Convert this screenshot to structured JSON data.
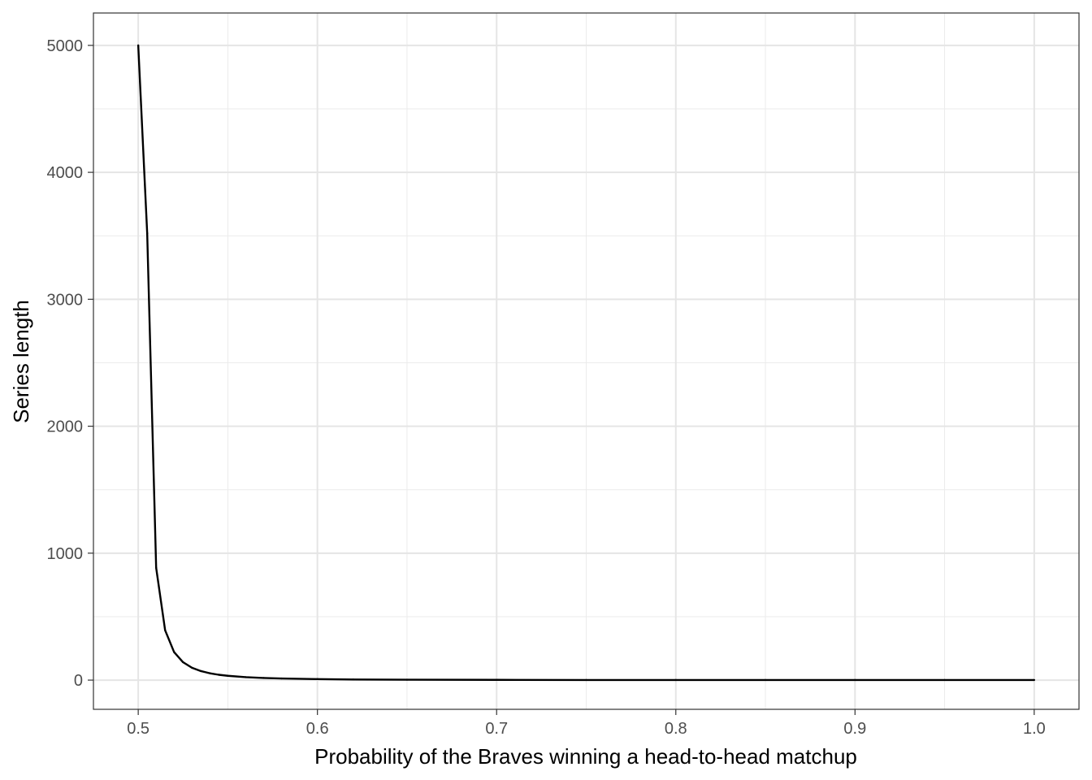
{
  "chart_data": {
    "type": "line",
    "title": "",
    "xlabel": "Probability of the Braves winning a head-to-head matchup",
    "ylabel": "Series length",
    "xlim": [
      0.475,
      1.025
    ],
    "ylim": [
      -230,
      5255
    ],
    "x_ticks": [
      0.5,
      0.6,
      0.7,
      0.8,
      0.9,
      1.0
    ],
    "x_tick_labels": [
      "0.5",
      "0.6",
      "0.7",
      "0.8",
      "0.9",
      "1.0"
    ],
    "y_ticks": [
      0,
      1000,
      2000,
      3000,
      4000,
      5000
    ],
    "y_tick_labels": [
      "0",
      "1000",
      "2000",
      "3000",
      "4000",
      "5000"
    ],
    "grid": true,
    "theme": "bw",
    "series": [
      {
        "color": "#000000",
        "x": [
          0.5,
          0.505,
          0.51,
          0.515,
          0.52,
          0.525,
          0.53,
          0.535,
          0.54,
          0.545,
          0.55,
          0.56,
          0.57,
          0.58,
          0.6,
          0.62,
          0.65,
          0.7,
          0.75,
          0.8,
          0.85,
          0.9,
          0.95,
          1.0
        ],
        "y": [
          5000,
          3520,
          885,
          393,
          221,
          141,
          97,
          71,
          54,
          42,
          34,
          23,
          17,
          13,
          8,
          5,
          3,
          2,
          1,
          1,
          1,
          1,
          1,
          1
        ]
      }
    ]
  }
}
